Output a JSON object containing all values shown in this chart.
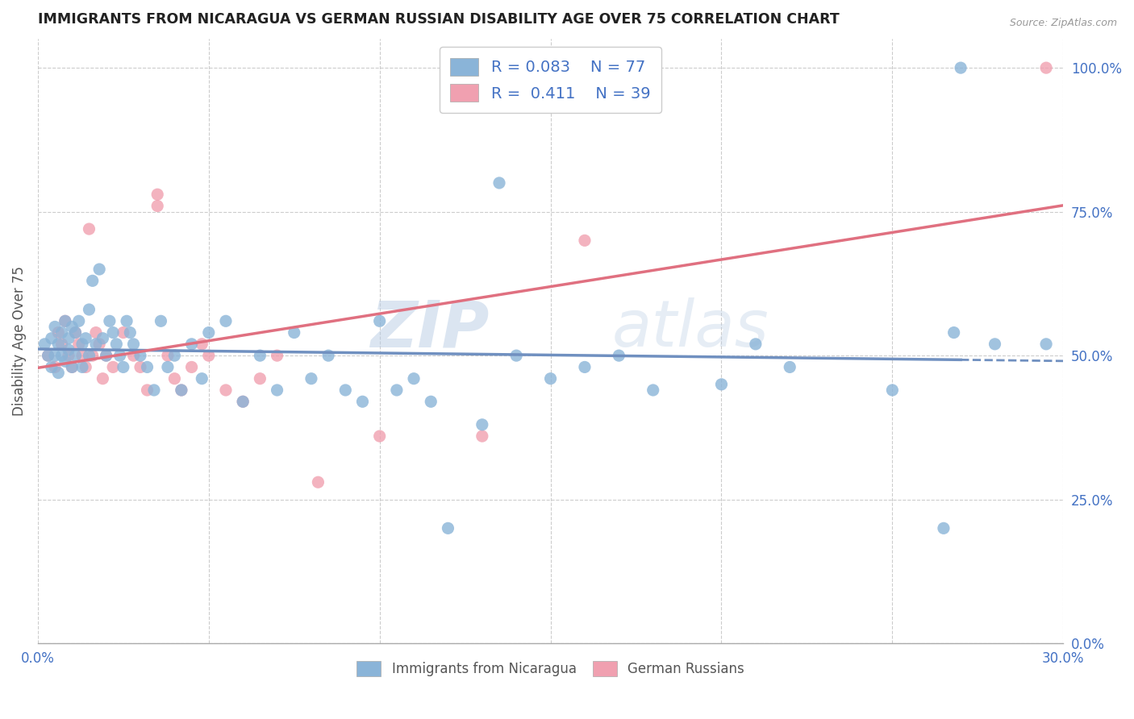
{
  "title": "IMMIGRANTS FROM NICARAGUA VS GERMAN RUSSIAN DISABILITY AGE OVER 75 CORRELATION CHART",
  "source": "Source: ZipAtlas.com",
  "ylabel": "Disability Age Over 75",
  "xmin": 0.0,
  "xmax": 0.3,
  "ymin": 0.0,
  "ymax": 1.05,
  "color_blue": "#8ab4d8",
  "color_pink": "#f0a0b0",
  "color_blue_line": "#7090c0",
  "color_pink_line": "#e07080",
  "watermark_zip": "ZIP",
  "watermark_atlas": "atlas",
  "figsize": [
    14.06,
    8.92
  ],
  "dpi": 100,
  "blue_x": [
    0.002,
    0.003,
    0.004,
    0.004,
    0.005,
    0.005,
    0.006,
    0.006,
    0.007,
    0.007,
    0.008,
    0.008,
    0.009,
    0.009,
    0.01,
    0.01,
    0.011,
    0.011,
    0.012,
    0.013,
    0.013,
    0.014,
    0.015,
    0.015,
    0.016,
    0.017,
    0.018,
    0.019,
    0.02,
    0.021,
    0.022,
    0.023,
    0.024,
    0.025,
    0.026,
    0.027,
    0.028,
    0.03,
    0.032,
    0.034,
    0.036,
    0.038,
    0.04,
    0.042,
    0.045,
    0.048,
    0.05,
    0.055,
    0.06,
    0.065,
    0.07,
    0.075,
    0.08,
    0.085,
    0.09,
    0.095,
    0.1,
    0.105,
    0.11,
    0.115,
    0.12,
    0.13,
    0.135,
    0.14,
    0.15,
    0.16,
    0.17,
    0.18,
    0.2,
    0.21,
    0.22,
    0.25,
    0.265,
    0.268,
    0.27,
    0.28,
    0.295
  ],
  "blue_y": [
    0.52,
    0.5,
    0.53,
    0.48,
    0.55,
    0.5,
    0.52,
    0.47,
    0.54,
    0.5,
    0.56,
    0.49,
    0.53,
    0.51,
    0.55,
    0.48,
    0.54,
    0.5,
    0.56,
    0.52,
    0.48,
    0.53,
    0.58,
    0.5,
    0.63,
    0.52,
    0.65,
    0.53,
    0.5,
    0.56,
    0.54,
    0.52,
    0.5,
    0.48,
    0.56,
    0.54,
    0.52,
    0.5,
    0.48,
    0.44,
    0.56,
    0.48,
    0.5,
    0.44,
    0.52,
    0.46,
    0.54,
    0.56,
    0.42,
    0.5,
    0.44,
    0.54,
    0.46,
    0.5,
    0.44,
    0.42,
    0.56,
    0.44,
    0.46,
    0.42,
    0.2,
    0.38,
    0.8,
    0.5,
    0.46,
    0.48,
    0.5,
    0.44,
    0.45,
    0.52,
    0.48,
    0.44,
    0.2,
    0.54,
    1.0,
    0.52,
    0.52
  ],
  "pink_x": [
    0.003,
    0.005,
    0.006,
    0.007,
    0.008,
    0.009,
    0.01,
    0.011,
    0.012,
    0.013,
    0.014,
    0.015,
    0.016,
    0.017,
    0.018,
    0.019,
    0.02,
    0.022,
    0.025,
    0.028,
    0.03,
    0.032,
    0.035,
    0.035,
    0.038,
    0.04,
    0.042,
    0.045,
    0.048,
    0.05,
    0.055,
    0.06,
    0.065,
    0.07,
    0.082,
    0.1,
    0.13,
    0.16,
    0.295
  ],
  "pink_y": [
    0.5,
    0.48,
    0.54,
    0.52,
    0.56,
    0.5,
    0.48,
    0.54,
    0.52,
    0.5,
    0.48,
    0.72,
    0.5,
    0.54,
    0.52,
    0.46,
    0.5,
    0.48,
    0.54,
    0.5,
    0.48,
    0.44,
    0.76,
    0.78,
    0.5,
    0.46,
    0.44,
    0.48,
    0.52,
    0.5,
    0.44,
    0.42,
    0.46,
    0.5,
    0.28,
    0.36,
    0.36,
    0.7,
    1.0
  ]
}
